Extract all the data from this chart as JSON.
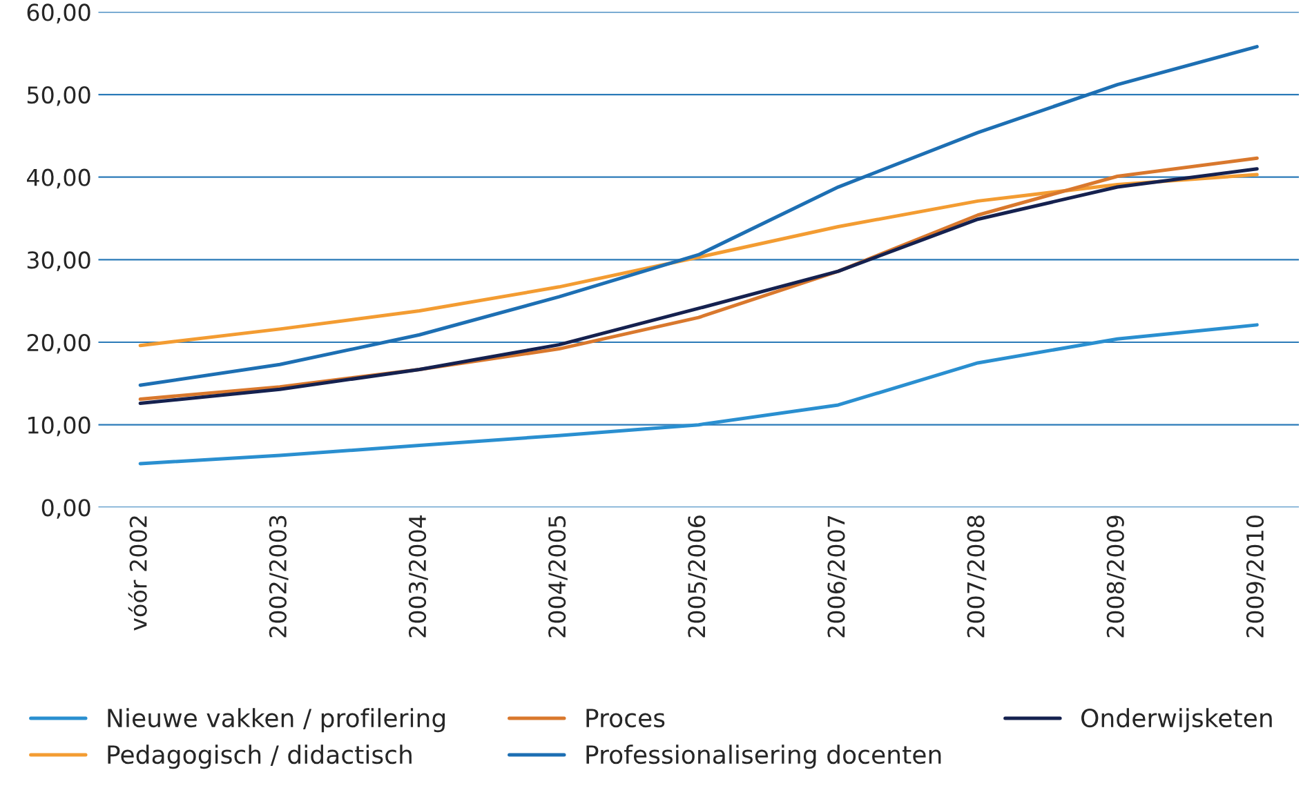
{
  "chart_data": {
    "type": "line",
    "categories": [
      "vóór 2002",
      "2002/2003",
      "2003/2004",
      "2004/2005",
      "2005/2006",
      "2006/2007",
      "2007/2008",
      "2008/2009",
      "2009/2010"
    ],
    "series": [
      {
        "name": "Nieuwe vakken / profilering",
        "color": "#2a8fd0",
        "values": [
          5.3,
          6.3,
          7.5,
          8.7,
          10.0,
          12.4,
          17.5,
          20.4,
          22.1
        ]
      },
      {
        "name": "Pedagogisch / didactisch",
        "color": "#f39c32",
        "values": [
          19.6,
          21.6,
          23.8,
          26.7,
          30.3,
          34.0,
          37.1,
          39.1,
          40.3
        ]
      },
      {
        "name": "Proces",
        "color": "#d9782d",
        "values": [
          13.1,
          14.6,
          16.7,
          19.2,
          23.0,
          28.6,
          35.4,
          40.1,
          42.3
        ]
      },
      {
        "name": "Professionalisering docenten",
        "color": "#1d6fb3",
        "values": [
          14.8,
          17.3,
          20.9,
          25.5,
          30.6,
          38.8,
          45.4,
          51.2,
          55.8
        ]
      },
      {
        "name": "Onderwijsketen",
        "color": "#15214f",
        "values": [
          12.6,
          14.3,
          16.7,
          19.7,
          24.1,
          28.6,
          34.9,
          38.8,
          41.0
        ]
      }
    ],
    "ylim": [
      0,
      60
    ],
    "yticks": [
      {
        "value": 0,
        "label": "0,00"
      },
      {
        "value": 10,
        "label": "10,00"
      },
      {
        "value": 20,
        "label": "20,00"
      },
      {
        "value": 30,
        "label": "30,00"
      },
      {
        "value": 40,
        "label": "40,00"
      },
      {
        "value": 50,
        "label": "50,00"
      },
      {
        "value": 60,
        "label": "60,00"
      }
    ],
    "grid": "y",
    "legend": "bottom",
    "marker": "none",
    "line_style": "solid"
  }
}
